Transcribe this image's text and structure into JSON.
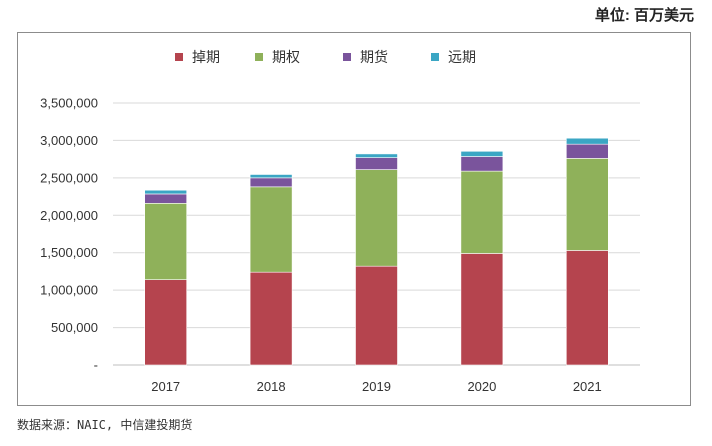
{
  "unit_label": "单位: 百万美元",
  "source_note": "数据来源：NAIC, 中信建投期货",
  "chart_data": {
    "type": "bar",
    "stacked": true,
    "categories": [
      "2017",
      "2018",
      "2019",
      "2020",
      "2021"
    ],
    "series": [
      {
        "name": "掉期",
        "color": "#b5444e",
        "values": [
          1140000,
          1240000,
          1320000,
          1490000,
          1530000
        ]
      },
      {
        "name": "期权",
        "color": "#8fb15a",
        "values": [
          1020000,
          1140000,
          1290000,
          1100000,
          1230000
        ]
      },
      {
        "name": "期货",
        "color": "#7a549c",
        "values": [
          125000,
          120000,
          160000,
          195000,
          190000
        ]
      },
      {
        "name": "远期",
        "color": "#3ba6c4",
        "values": [
          50000,
          45000,
          50000,
          70000,
          80000
        ]
      }
    ],
    "yticks": [
      "-",
      "500,000",
      "1,000,000",
      "1,500,000",
      "2,000,000",
      "2,500,000",
      "3,000,000",
      "3,500,000"
    ],
    "ylim": [
      0,
      3500000
    ],
    "grid": true,
    "legend_position": "top"
  }
}
